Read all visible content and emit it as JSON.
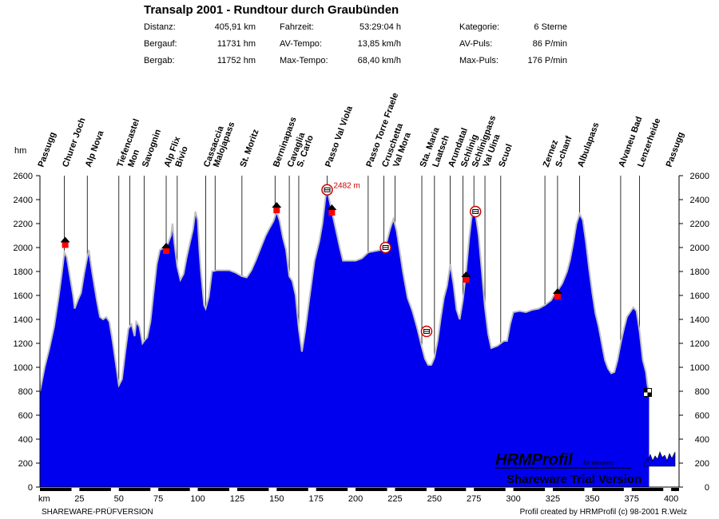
{
  "header": {
    "title": "Transalp 2001 - Rundtour durch Graubünden",
    "stats_col1": [
      {
        "label": "Distanz:",
        "value": "405,91 km"
      },
      {
        "label": "Bergauf:",
        "value": "11731 hm"
      },
      {
        "label": "Bergab:",
        "value": "11752 hm"
      }
    ],
    "stats_col2": [
      {
        "label": "Fahrzeit:",
        "value": "53:29:04 h"
      },
      {
        "label": "AV-Tempo:",
        "value": "13,85 km/h"
      },
      {
        "label": "Max-Tempo:",
        "value": "68,40 km/h"
      }
    ],
    "stats_col3": [
      {
        "label": "Kategorie:",
        "value": "6 Sterne"
      },
      {
        "label": "AV-Puls:",
        "value": "86 P/min"
      },
      {
        "label": "Max-Puls:",
        "value": "176 P/min"
      }
    ]
  },
  "footer": {
    "left": "SHAREWARE-PRÜFVERSION",
    "right": "Profil created by HRMProfil (c) 98-2001 R.Welz"
  },
  "watermark": {
    "brand": "HRMProfil",
    "suffix": "for Windows",
    "line2": "Shareware Trial Version"
  },
  "colors": {
    "fill": "#0000ee",
    "outline": "#c0c0c0",
    "peak_label": "#cc0000"
  },
  "chart_data": {
    "type": "area",
    "ylabel": "hm",
    "xlabel": "km",
    "xlim": [
      0,
      405
    ],
    "ylim": [
      0,
      2600
    ],
    "yticks": [
      0,
      200,
      400,
      600,
      800,
      1000,
      1200,
      1400,
      1600,
      1800,
      2000,
      2200,
      2400,
      2600
    ],
    "xticks": [
      25,
      50,
      75,
      100,
      125,
      150,
      175,
      200,
      225,
      250,
      275,
      300,
      325,
      350,
      375,
      400
    ],
    "grid": false,
    "profile": [
      [
        0,
        800
      ],
      [
        3,
        1000
      ],
      [
        6,
        1160
      ],
      [
        9,
        1340
      ],
      [
        12,
        1600
      ],
      [
        14,
        1800
      ],
      [
        15.5,
        1960
      ],
      [
        17,
        1920
      ],
      [
        19,
        1760
      ],
      [
        21,
        1600
      ],
      [
        22,
        1490
      ],
      [
        24,
        1560
      ],
      [
        26,
        1620
      ],
      [
        28,
        1780
      ],
      [
        30,
        1920
      ],
      [
        31,
        1980
      ],
      [
        33,
        1800
      ],
      [
        36,
        1560
      ],
      [
        38,
        1420
      ],
      [
        40,
        1400
      ],
      [
        42,
        1420
      ],
      [
        44,
        1380
      ],
      [
        46,
        1220
      ],
      [
        48,
        1040
      ],
      [
        50,
        850
      ],
      [
        52,
        900
      ],
      [
        54,
        1120
      ],
      [
        56,
        1320
      ],
      [
        58,
        1360
      ],
      [
        60,
        1260
      ],
      [
        61,
        1380
      ],
      [
        63,
        1340
      ],
      [
        65,
        1200
      ],
      [
        66,
        1220
      ],
      [
        68,
        1250
      ],
      [
        70,
        1380
      ],
      [
        72,
        1620
      ],
      [
        74,
        1860
      ],
      [
        76,
        1980
      ],
      [
        79,
        2000
      ],
      [
        81,
        2030
      ],
      [
        83,
        2100
      ],
      [
        84,
        2200
      ],
      [
        85,
        2060
      ],
      [
        87,
        1840
      ],
      [
        89,
        1730
      ],
      [
        91,
        1780
      ],
      [
        93,
        1920
      ],
      [
        95,
        2040
      ],
      [
        97,
        2150
      ],
      [
        98.5,
        2300
      ],
      [
        100,
        2230
      ],
      [
        101,
        1980
      ],
      [
        102,
        1800
      ],
      [
        104,
        1520
      ],
      [
        105,
        1490
      ],
      [
        107,
        1590
      ],
      [
        109,
        1800
      ],
      [
        112,
        1810
      ],
      [
        116,
        1810
      ],
      [
        120,
        1810
      ],
      [
        124,
        1790
      ],
      [
        128,
        1760
      ],
      [
        131,
        1750
      ],
      [
        134,
        1810
      ],
      [
        137,
        1900
      ],
      [
        140,
        2000
      ],
      [
        143,
        2100
      ],
      [
        145,
        2150
      ],
      [
        148,
        2220
      ],
      [
        150,
        2300
      ],
      [
        152,
        2220
      ],
      [
        154,
        2080
      ],
      [
        156,
        1980
      ],
      [
        158,
        1760
      ],
      [
        160,
        1720
      ],
      [
        162,
        1600
      ],
      [
        164,
        1320
      ],
      [
        166,
        1130
      ],
      [
        168,
        1300
      ],
      [
        171,
        1600
      ],
      [
        174,
        1890
      ],
      [
        177,
        2050
      ],
      [
        179,
        2200
      ],
      [
        181,
        2420
      ],
      [
        182,
        2482
      ],
      [
        184,
        2360
      ],
      [
        186,
        2240
      ],
      [
        188,
        2120
      ],
      [
        190,
        2000
      ],
      [
        192,
        1890
      ],
      [
        196,
        1890
      ],
      [
        200,
        1890
      ],
      [
        204,
        1910
      ],
      [
        208,
        1960
      ],
      [
        212,
        1970
      ],
      [
        216,
        1980
      ],
      [
        218,
        1960
      ],
      [
        220,
        2060
      ],
      [
        222,
        2160
      ],
      [
        224,
        2240
      ],
      [
        226,
        2140
      ],
      [
        228,
        1970
      ],
      [
        230,
        1800
      ],
      [
        233,
        1580
      ],
      [
        236,
        1470
      ],
      [
        239,
        1330
      ],
      [
        242,
        1170
      ],
      [
        244,
        1070
      ],
      [
        246,
        1020
      ],
      [
        248,
        1020
      ],
      [
        250,
        1080
      ],
      [
        252,
        1220
      ],
      [
        254,
        1410
      ],
      [
        256,
        1580
      ],
      [
        258,
        1680
      ],
      [
        260,
        1860
      ],
      [
        262,
        1700
      ],
      [
        264,
        1480
      ],
      [
        266,
        1400
      ],
      [
        268,
        1560
      ],
      [
        270,
        1790
      ],
      [
        272,
        2080
      ],
      [
        274,
        2300
      ],
      [
        276,
        2280
      ],
      [
        278,
        2100
      ],
      [
        280,
        1800
      ],
      [
        282,
        1500
      ],
      [
        284,
        1280
      ],
      [
        286,
        1160
      ],
      [
        290,
        1180
      ],
      [
        294,
        1220
      ],
      [
        296,
        1220
      ],
      [
        298,
        1360
      ],
      [
        300,
        1460
      ],
      [
        304,
        1470
      ],
      [
        308,
        1460
      ],
      [
        312,
        1480
      ],
      [
        316,
        1490
      ],
      [
        320,
        1520
      ],
      [
        324,
        1560
      ],
      [
        326,
        1610
      ],
      [
        328,
        1640
      ],
      [
        331,
        1700
      ],
      [
        334,
        1800
      ],
      [
        336,
        1900
      ],
      [
        338,
        2040
      ],
      [
        340,
        2200
      ],
      [
        342,
        2280
      ],
      [
        344,
        2230
      ],
      [
        346,
        2040
      ],
      [
        348,
        1820
      ],
      [
        350,
        1620
      ],
      [
        352,
        1450
      ],
      [
        354,
        1340
      ],
      [
        356,
        1200
      ],
      [
        358,
        1060
      ],
      [
        360,
        990
      ],
      [
        362,
        950
      ],
      [
        364,
        960
      ],
      [
        366,
        1060
      ],
      [
        368,
        1200
      ],
      [
        370,
        1320
      ],
      [
        372,
        1420
      ],
      [
        374,
        1460
      ],
      [
        376,
        1500
      ],
      [
        378,
        1470
      ],
      [
        380,
        1300
      ],
      [
        382,
        1060
      ],
      [
        384,
        960
      ],
      [
        385,
        850
      ],
      [
        386,
        800
      ]
    ],
    "waypoints": [
      {
        "name": "Passugg",
        "km": 0,
        "line": false
      },
      {
        "name": "Churer Joch",
        "km": 15.5,
        "line": true
      },
      {
        "name": "Alp Nova",
        "km": 30,
        "line": true
      },
      {
        "name": "Tiefencastel",
        "km": 50,
        "line": true
      },
      {
        "name": "Mon",
        "km": 57,
        "line": true
      },
      {
        "name": "Savognin",
        "km": 66,
        "line": true
      },
      {
        "name": "Alp Flix",
        "km": 80,
        "line": true
      },
      {
        "name": "Bivio",
        "km": 87,
        "line": true
      },
      {
        "name": "Cassaccia",
        "km": 105,
        "line": true
      },
      {
        "name": "Malojapass",
        "km": 111,
        "line": true
      },
      {
        "name": "St. Moritz",
        "km": 128,
        "line": true
      },
      {
        "name": "Berninapass",
        "km": 149,
        "line": true
      },
      {
        "name": "Cavaglia",
        "km": 158,
        "line": true
      },
      {
        "name": "S. Carlo",
        "km": 164,
        "line": true
      },
      {
        "name": "Passo Val Viola",
        "km": 182,
        "line": true
      },
      {
        "name": "Passo Torre Fraele",
        "km": 208,
        "line": true
      },
      {
        "name": "Cruschetta",
        "km": 218,
        "line": true
      },
      {
        "name": "Val Mora",
        "km": 225,
        "line": true
      },
      {
        "name": "Sta. Maria",
        "km": 242,
        "line": true
      },
      {
        "name": "Laatsch",
        "km": 250,
        "line": true
      },
      {
        "name": "Arundatal",
        "km": 260,
        "line": true
      },
      {
        "name": "Schlinig",
        "km": 268,
        "line": true
      },
      {
        "name": "Schlinigpass",
        "km": 275,
        "line": true
      },
      {
        "name": "Val Uina",
        "km": 282,
        "line": true
      },
      {
        "name": "Scuol",
        "km": 292,
        "line": true
      },
      {
        "name": "Zernez",
        "km": 320,
        "line": true
      },
      {
        "name": "S-chanf",
        "km": 328,
        "line": true
      },
      {
        "name": "Albulapass",
        "km": 342,
        "line": true
      },
      {
        "name": "Alvaneu Bad",
        "km": 368,
        "line": true
      },
      {
        "name": "Lenzerheide",
        "km": 380,
        "line": true
      },
      {
        "name": "Passugg",
        "km": 398,
        "line": false
      }
    ],
    "markers": [
      {
        "type": "hut",
        "km": 16,
        "alt": 2030
      },
      {
        "type": "hut",
        "km": 80,
        "alt": 1980
      },
      {
        "type": "hut",
        "km": 150,
        "alt": 2320
      },
      {
        "type": "peak",
        "km": 182,
        "alt": 2482,
        "label": "2482 m"
      },
      {
        "type": "hut",
        "km": 185,
        "alt": 2300
      },
      {
        "type": "stop",
        "km": 219,
        "alt": 2000
      },
      {
        "type": "stop",
        "km": 245,
        "alt": 1300
      },
      {
        "type": "hut",
        "km": 270,
        "alt": 1740
      },
      {
        "type": "stop",
        "km": 276,
        "alt": 2300
      },
      {
        "type": "hut",
        "km": 328,
        "alt": 1600
      },
      {
        "type": "finish",
        "km": 385,
        "alt": 790
      }
    ],
    "axis_bands": [
      [
        0,
        20
      ],
      [
        25,
        45
      ],
      [
        50,
        70
      ],
      [
        75,
        95
      ],
      [
        100,
        120
      ],
      [
        125,
        145
      ],
      [
        150,
        170
      ],
      [
        175,
        195
      ],
      [
        200,
        220
      ],
      [
        225,
        245
      ],
      [
        250,
        270
      ],
      [
        275,
        295
      ],
      [
        300,
        320
      ],
      [
        325,
        345
      ],
      [
        350,
        370
      ],
      [
        375,
        395
      ],
      [
        400,
        405
      ]
    ]
  }
}
